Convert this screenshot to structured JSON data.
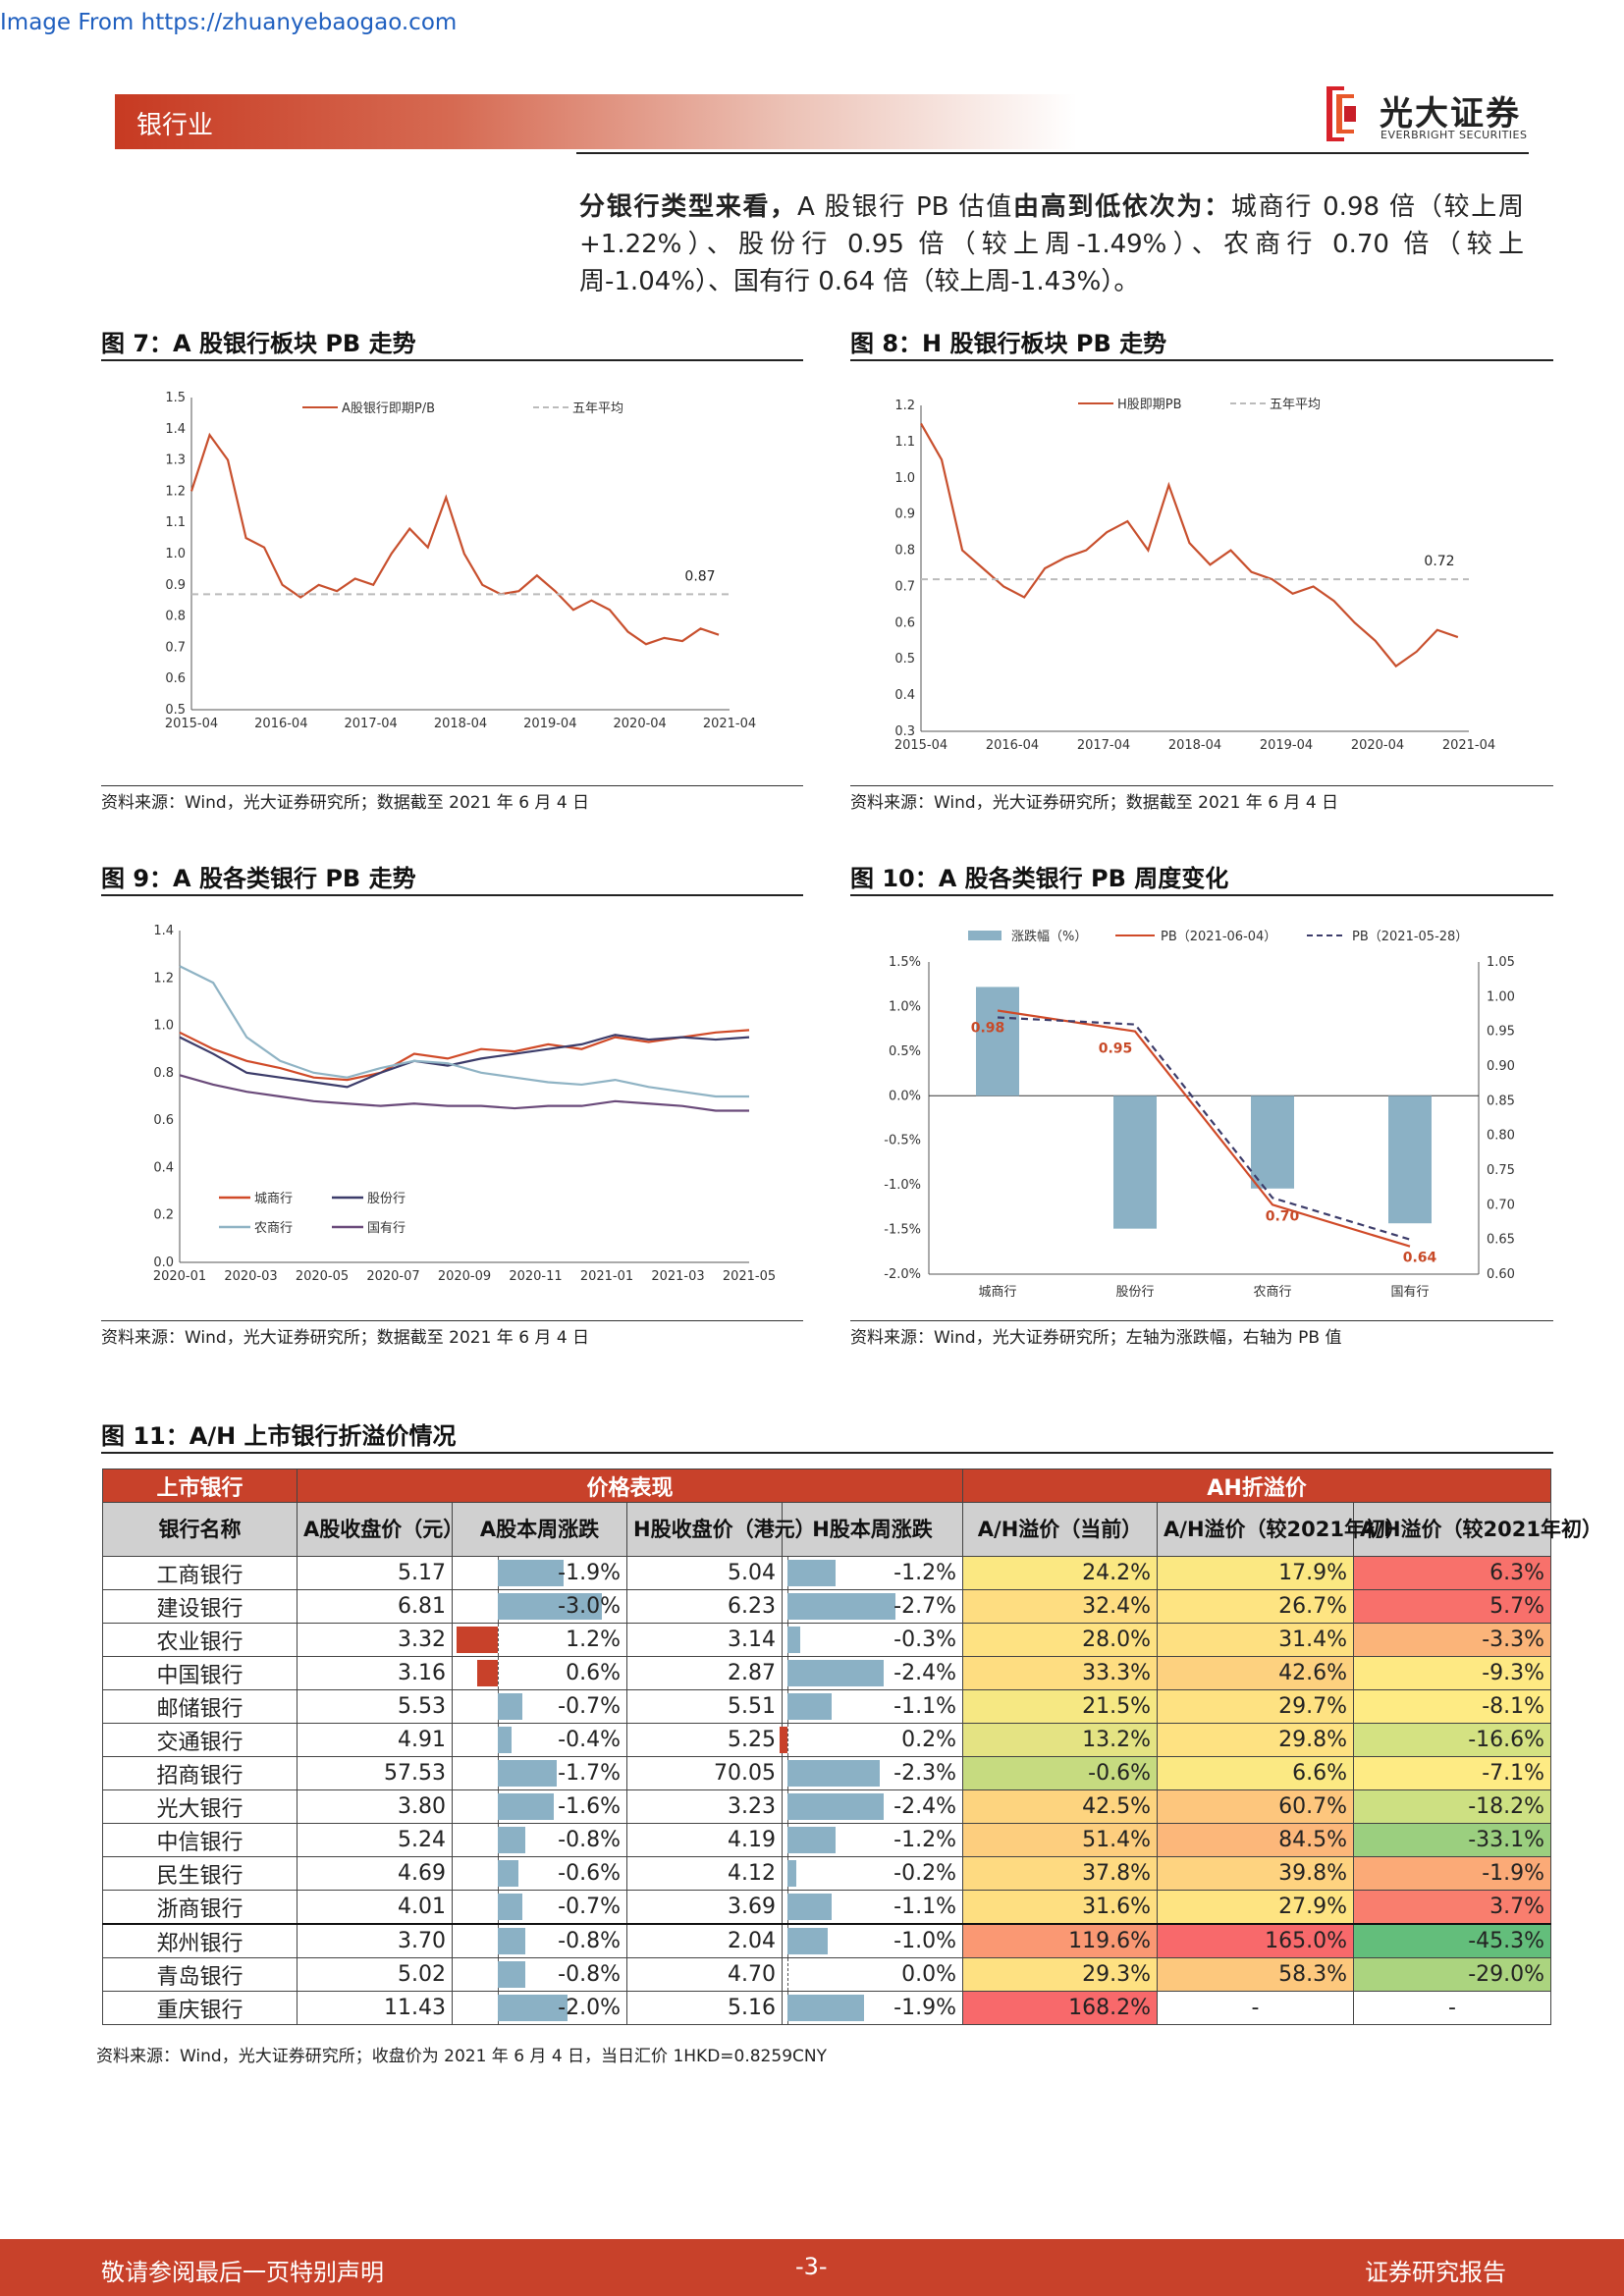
{
  "source_link": "Image From https://zhuanyebaogao.com",
  "header": {
    "sector": "银行业",
    "logo_cn": "光大证券",
    "logo_en": "EVERBRIGHT SECURITIES"
  },
  "intro": {
    "bold1": "分银行类型来看，",
    "text1": "A 股银行 PB 估值",
    "bold2": "由高到低依次为：",
    "text2": "城商行 0.98 倍（较上周+1.22%）、股份行 0.95 倍（较上周-1.49%）、农商行 0.70 倍（较上周-1.04%）、国有行 0.64 倍（较上周-1.43%）。"
  },
  "figures": {
    "fig7": {
      "title": "图 7：A 股银行板块 PB 走势",
      "source": "资料来源：Wind，光大证券研究所；数据截至 2021 年 6 月 4 日"
    },
    "fig8": {
      "title": "图 8：H 股银行板块 PB 走势",
      "source": "资料来源：Wind，光大证券研究所；数据截至 2021 年 6 月 4 日"
    },
    "fig9": {
      "title": "图 9：A 股各类银行 PB 走势",
      "source": "资料来源：Wind，光大证券研究所；数据截至 2021 年 6 月 4 日"
    },
    "fig10": {
      "title": "图 10：A 股各类银行 PB 周度变化",
      "source": "资料来源：Wind，光大证券研究所；左轴为涨跌幅，右轴为 PB 值"
    }
  },
  "chart_data": [
    {
      "id": "fig7",
      "type": "line",
      "x_ticks": [
        "2015-04",
        "2016-04",
        "2017-04",
        "2018-04",
        "2019-04",
        "2020-04",
        "2021-04"
      ],
      "ylim": [
        0.5,
        1.5
      ],
      "y_ticks": [
        "0.5",
        "0.6",
        "0.7",
        "0.8",
        "0.9",
        "1.0",
        "1.1",
        "1.2",
        "1.3",
        "1.4",
        "1.5"
      ],
      "series": [
        {
          "name": "A股银行即期P/B",
          "color": "#c8502e",
          "values": [
            1.2,
            1.38,
            1.3,
            1.05,
            1.02,
            0.9,
            0.86,
            0.9,
            0.88,
            0.92,
            0.9,
            1.0,
            1.08,
            1.02,
            1.18,
            1.0,
            0.9,
            0.87,
            0.88,
            0.93,
            0.88,
            0.82,
            0.85,
            0.82,
            0.75,
            0.71,
            0.73,
            0.72,
            0.76,
            0.74
          ]
        },
        {
          "name": "五年平均",
          "color": "#bbbbbb",
          "dashed": true,
          "values": [
            0.87,
            0.87
          ]
        }
      ],
      "annotation": "0.87"
    },
    {
      "id": "fig8",
      "type": "line",
      "x_ticks": [
        "2015-04",
        "2016-04",
        "2017-04",
        "2018-04",
        "2019-04",
        "2020-04",
        "2021-04"
      ],
      "ylim": [
        0.3,
        1.2
      ],
      "y_ticks": [
        "0.3",
        "0.4",
        "0.5",
        "0.6",
        "0.7",
        "0.8",
        "0.9",
        "1.0",
        "1.1",
        "1.2"
      ],
      "series": [
        {
          "name": "H股即期PB",
          "color": "#c8502e",
          "values": [
            1.15,
            1.05,
            0.8,
            0.75,
            0.7,
            0.67,
            0.75,
            0.78,
            0.8,
            0.85,
            0.88,
            0.8,
            0.98,
            0.82,
            0.76,
            0.8,
            0.74,
            0.72,
            0.68,
            0.7,
            0.66,
            0.6,
            0.55,
            0.48,
            0.52,
            0.58,
            0.56
          ]
        },
        {
          "name": "五年平均",
          "color": "#bbbbbb",
          "dashed": true,
          "values": [
            0.72,
            0.72
          ]
        }
      ],
      "annotation": "0.72"
    },
    {
      "id": "fig9",
      "type": "line",
      "x_ticks": [
        "2020-01",
        "2020-03",
        "2020-05",
        "2020-07",
        "2020-09",
        "2020-11",
        "2021-01",
        "2021-03",
        "2021-05"
      ],
      "ylim": [
        0,
        1.4
      ],
      "y_ticks": [
        "0.0",
        "0.2",
        "0.4",
        "0.6",
        "0.8",
        "1.0",
        "1.2",
        "1.4"
      ],
      "series": [
        {
          "name": "城商行",
          "color": "#d04a28",
          "values": [
            0.97,
            0.9,
            0.85,
            0.82,
            0.78,
            0.77,
            0.8,
            0.88,
            0.86,
            0.9,
            0.89,
            0.92,
            0.9,
            0.95,
            0.93,
            0.95,
            0.97,
            0.98
          ]
        },
        {
          "name": "股份行",
          "color": "#3c3c6a",
          "values": [
            0.95,
            0.88,
            0.8,
            0.78,
            0.76,
            0.74,
            0.8,
            0.85,
            0.83,
            0.86,
            0.88,
            0.9,
            0.92,
            0.96,
            0.94,
            0.95,
            0.94,
            0.95
          ]
        },
        {
          "name": "农商行",
          "color": "#8fb3c4",
          "values": [
            1.25,
            1.18,
            0.95,
            0.85,
            0.8,
            0.78,
            0.82,
            0.85,
            0.84,
            0.8,
            0.78,
            0.76,
            0.75,
            0.77,
            0.74,
            0.72,
            0.7,
            0.7
          ]
        },
        {
          "name": "国有行",
          "color": "#6a4a7a",
          "values": [
            0.79,
            0.75,
            0.72,
            0.7,
            0.68,
            0.67,
            0.66,
            0.67,
            0.66,
            0.66,
            0.65,
            0.66,
            0.66,
            0.68,
            0.67,
            0.66,
            0.64,
            0.64
          ]
        }
      ]
    },
    {
      "id": "fig10",
      "type": "bar",
      "categories": [
        "城商行",
        "股份行",
        "农商行",
        "国有行"
      ],
      "series": [
        {
          "name": "涨跌幅（%）",
          "color": "#8bb1c5",
          "values": [
            1.22,
            -1.49,
            -1.04,
            -1.43
          ]
        },
        {
          "name": "PB（2021-06-04）",
          "color": "#d04a28",
          "axis": "right",
          "values": [
            0.98,
            0.95,
            0.7,
            0.64
          ]
        },
        {
          "name": "PB（2021-05-28）",
          "color": "#3c3c6a",
          "dashed": true,
          "axis": "right",
          "values": [
            0.97,
            0.96,
            0.71,
            0.65
          ]
        }
      ],
      "left_ylim": [
        -2.0,
        1.5
      ],
      "left_ticks": [
        "-2.0%",
        "-1.5%",
        "-1.0%",
        "-0.5%",
        "0.0%",
        "0.5%",
        "1.0%",
        "1.5%"
      ],
      "right_ylim": [
        0.6,
        1.05
      ],
      "right_ticks": [
        "0.60",
        "0.65",
        "0.70",
        "0.75",
        "0.80",
        "0.85",
        "0.90",
        "0.95",
        "1.00",
        "1.05"
      ],
      "data_labels": [
        "0.98",
        "0.95",
        "0.70",
        "0.64"
      ]
    },
    {
      "id": "fig11",
      "type": "table",
      "title": "图 11：A/H 上市银行折溢价情况",
      "group_headers": [
        "上市银行",
        "价格表现",
        "AH折溢价"
      ],
      "columns": [
        "银行名称",
        "A股收盘价（元）",
        "A股本周涨跌",
        "H股收盘价（港元）",
        "H股本周涨跌",
        "A/H溢价（当前）",
        "A/H溢价（较2021年初）",
        "A/H溢价（较2021年初）"
      ],
      "rows": [
        {
          "name": "工商银行",
          "a_price": "5.17",
          "a_chg": "-1.9%",
          "a_v": -1.9,
          "h_price": "5.04",
          "h_chg": "-1.2%",
          "h_v": -1.2,
          "p1": "24.2%",
          "p2": "17.9%",
          "p3": "6.3%",
          "c1": "#fbe882",
          "c2": "#fbe882",
          "c3": "#f8716b"
        },
        {
          "name": "建设银行",
          "a_price": "6.81",
          "a_chg": "-3.0%",
          "a_v": -3.0,
          "h_price": "6.23",
          "h_chg": "-2.7%",
          "h_v": -2.7,
          "p1": "32.4%",
          "p2": "26.7%",
          "p3": "5.7%",
          "c1": "#fedd81",
          "c2": "#fee482",
          "c3": "#f8706b"
        },
        {
          "name": "农业银行",
          "a_price": "3.32",
          "a_chg": "1.2%",
          "a_v": 1.2,
          "h_price": "3.14",
          "h_chg": "-0.3%",
          "h_v": -0.3,
          "p1": "28.0%",
          "p2": "31.4%",
          "p3": "-3.3%",
          "c1": "#fee282",
          "c2": "#fee081",
          "c3": "#fbb479"
        },
        {
          "name": "中国银行",
          "a_price": "3.16",
          "a_chg": "0.6%",
          "a_v": 0.6,
          "h_price": "2.87",
          "h_chg": "-2.4%",
          "h_v": -2.4,
          "p1": "33.3%",
          "p2": "42.6%",
          "p3": "-9.3%",
          "c1": "#fedd81",
          "c2": "#fdd17f",
          "c3": "#fee983"
        },
        {
          "name": "邮储银行",
          "a_price": "5.53",
          "a_chg": "-0.7%",
          "a_v": -0.7,
          "h_price": "5.51",
          "h_chg": "-1.1%",
          "h_v": -1.1,
          "p1": "21.5%",
          "p2": "29.7%",
          "p3": "-8.1%",
          "c1": "#f6e883",
          "c2": "#fee282",
          "c3": "#feeb84"
        },
        {
          "name": "交通银行",
          "a_price": "4.91",
          "a_chg": "-0.4%",
          "a_v": -0.4,
          "h_price": "5.25",
          "h_chg": "0.2%",
          "h_v": 0.2,
          "p1": "13.2%",
          "p2": "29.8%",
          "p3": "-16.6%",
          "c1": "#e4e383",
          "c2": "#fee282",
          "c3": "#d4e282"
        },
        {
          "name": "招商银行",
          "a_price": "57.53",
          "a_chg": "-1.7%",
          "a_v": -1.7,
          "h_price": "70.05",
          "h_chg": "-2.3%",
          "h_v": -2.3,
          "p1": "-0.6%",
          "p2": "6.6%",
          "p3": "-7.1%",
          "c1": "#c6db80",
          "c2": "#fbe983",
          "c3": "#feeb84"
        },
        {
          "name": "光大银行",
          "a_price": "3.80",
          "a_chg": "-1.6%",
          "a_v": -1.6,
          "h_price": "3.23",
          "h_chg": "-2.4%",
          "h_v": -2.4,
          "p1": "42.5%",
          "p2": "60.7%",
          "p3": "-18.2%",
          "c1": "#fdd47f",
          "c2": "#fdc67d",
          "c3": "#cde082"
        },
        {
          "name": "中信银行",
          "a_price": "5.24",
          "a_chg": "-0.8%",
          "a_v": -0.8,
          "h_price": "4.19",
          "h_chg": "-1.2%",
          "h_v": -1.2,
          "p1": "51.4%",
          "p2": "84.5%",
          "p3": "-33.1%",
          "c1": "#fdce7e",
          "c2": "#fcb77a",
          "c3": "#9bcf7f"
        },
        {
          "name": "民生银行",
          "a_price": "4.69",
          "a_chg": "-0.6%",
          "a_v": -0.6,
          "h_price": "4.12",
          "h_chg": "-0.2%",
          "h_v": -0.2,
          "p1": "37.8%",
          "p2": "39.8%",
          "p3": "-1.9%",
          "c1": "#feda81",
          "c2": "#fed380",
          "c3": "#fbaa77"
        },
        {
          "name": "浙商银行",
          "a_price": "4.01",
          "a_chg": "-0.7%",
          "a_v": -0.7,
          "h_price": "3.69",
          "h_chg": "-1.1%",
          "h_v": -1.1,
          "p1": "31.6%",
          "p2": "27.9%",
          "p3": "3.7%",
          "c1": "#fedf81",
          "c2": "#fee482",
          "c3": "#f97e6e"
        },
        {
          "name": "郑州银行",
          "a_price": "3.70",
          "a_chg": "-0.8%",
          "a_v": -0.8,
          "h_price": "2.04",
          "h_chg": "-1.0%",
          "h_v": -1.0,
          "p1": "119.6%",
          "p2": "165.0%",
          "p3": "-45.3%",
          "c1": "#fa9873",
          "c2": "#f8696b",
          "c3": "#63be7b"
        },
        {
          "name": "青岛银行",
          "a_price": "5.02",
          "a_chg": "-0.8%",
          "a_v": -0.8,
          "h_price": "4.70",
          "h_chg": "0.0%",
          "h_v": 0.0,
          "p1": "29.3%",
          "p2": "58.3%",
          "p3": "-29.0%",
          "c1": "#fee182",
          "c2": "#fdc87d",
          "c3": "#abd47f"
        },
        {
          "name": "重庆银行",
          "a_price": "11.43",
          "a_chg": "-2.0%",
          "a_v": -2.0,
          "h_price": "5.16",
          "h_chg": "-1.9%",
          "h_v": -1.9,
          "p1": "168.2%",
          "p2": "-",
          "p3": "-",
          "c1": "#f8696b",
          "c2": "#ffffff",
          "c3": "#ffffff"
        }
      ]
    }
  ],
  "table_source": "资料来源：Wind，光大证券研究所；收盘价为 2021 年 6 月 4 日，当日汇价 1HKD=0.8259CNY",
  "footer": {
    "left": "敬请参阅最后一页特别声明",
    "center": "-3-",
    "right": "证券研究报告"
  }
}
